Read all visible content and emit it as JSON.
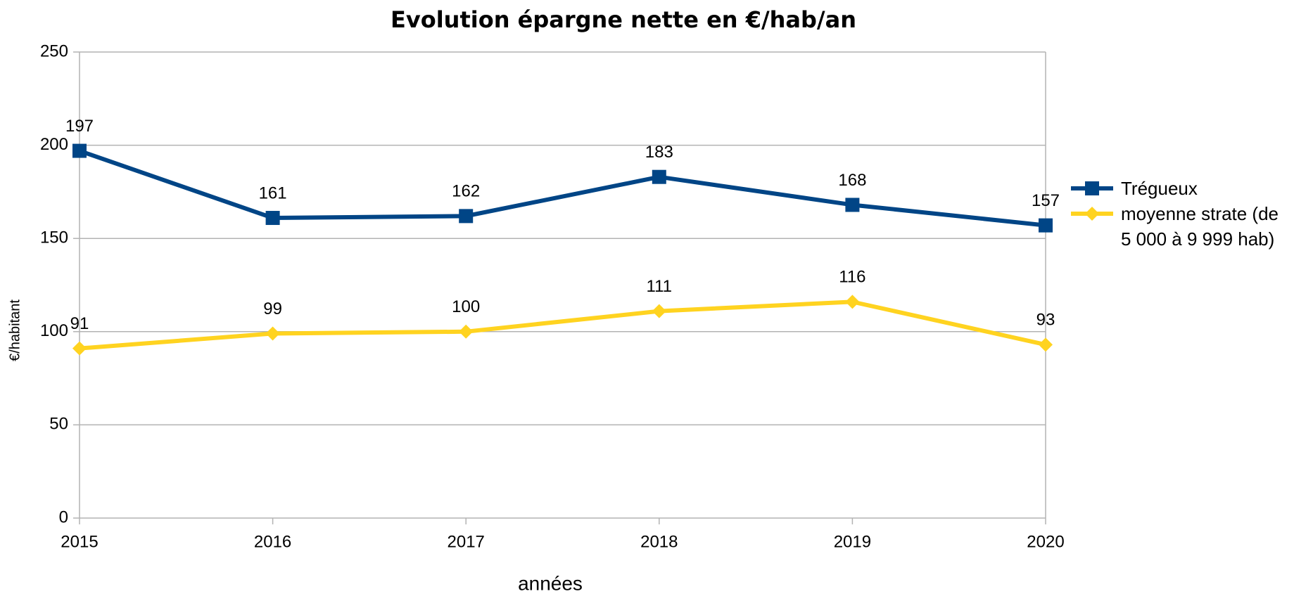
{
  "chart_data": {
    "type": "line",
    "title": "Evolution épargne nette en €/hab/an",
    "x_label": "années",
    "y_label": "€/habitant",
    "categories": [
      "2015",
      "2016",
      "2017",
      "2018",
      "2019",
      "2020"
    ],
    "series": [
      {
        "name": "Trégueux",
        "color": "#004586",
        "marker": "square",
        "values": [
          197,
          161,
          162,
          183,
          168,
          157
        ]
      },
      {
        "name": "moyenne strate (de 5 000 à 9 999 hab)",
        "color": "#ffd320",
        "marker": "diamond",
        "values": [
          91,
          99,
          100,
          111,
          116,
          93
        ]
      }
    ],
    "ylim": [
      0,
      250
    ],
    "yticks": [
      0,
      50,
      100,
      150,
      200,
      250
    ],
    "grid": true,
    "legend": "right"
  }
}
